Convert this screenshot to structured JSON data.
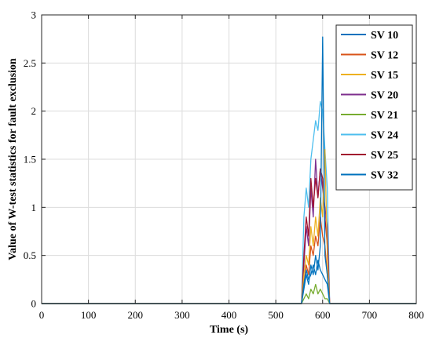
{
  "chart_data": {
    "type": "line",
    "xlabel": "Time (s)",
    "ylabel": "Value of W-test statistics for fault exclusion",
    "xlim": [
      0,
      800
    ],
    "ylim": [
      0,
      3
    ],
    "xticks": [
      "0",
      "100",
      "200",
      "300",
      "400",
      "500",
      "600",
      "700",
      "800"
    ],
    "yticks": [
      "0",
      "0.5",
      "1",
      "1.5",
      "2",
      "2.5",
      "3"
    ],
    "grid": true,
    "legend_position": "top-right",
    "series": [
      {
        "name": "SV 10",
        "color": "#0072BD",
        "x": [
          0,
          555,
          560,
          565,
          570,
          575,
          580,
          585,
          590,
          595,
          600,
          605,
          610,
          615,
          620,
          720,
          800
        ],
        "y": [
          0,
          0,
          0.15,
          0.3,
          0.2,
          0.4,
          0.3,
          0.5,
          0.35,
          0.6,
          2.77,
          0.5,
          0.3,
          0,
          0,
          0,
          0
        ]
      },
      {
        "name": "SV 12",
        "color": "#D95319",
        "x": [
          0,
          555,
          560,
          565,
          570,
          575,
          580,
          585,
          590,
          595,
          600,
          605,
          610,
          615,
          620,
          800
        ],
        "y": [
          0,
          0,
          0.2,
          0.4,
          0.3,
          0.6,
          0.5,
          0.7,
          0.6,
          0.9,
          0.7,
          0.6,
          0.3,
          0,
          0,
          0
        ]
      },
      {
        "name": "SV 15",
        "color": "#EDB120",
        "x": [
          0,
          555,
          560,
          565,
          570,
          575,
          580,
          585,
          590,
          595,
          600,
          605,
          610,
          615,
          620,
          800
        ],
        "y": [
          0,
          0,
          0.3,
          0.5,
          0.4,
          0.8,
          0.6,
          0.9,
          0.7,
          1.1,
          0.9,
          1.6,
          0.5,
          0,
          0,
          0
        ]
      },
      {
        "name": "SV 20",
        "color": "#7E2F8E",
        "x": [
          0,
          555,
          560,
          565,
          570,
          575,
          580,
          585,
          590,
          595,
          600,
          605,
          610,
          615,
          620,
          800
        ],
        "y": [
          0,
          0,
          0.4,
          0.8,
          0.6,
          1.2,
          0.9,
          1.5,
          1.1,
          1.4,
          1.2,
          1.0,
          0.8,
          0,
          0,
          0
        ]
      },
      {
        "name": "SV 21",
        "color": "#77AC30",
        "x": [
          0,
          555,
          560,
          565,
          570,
          575,
          580,
          585,
          590,
          595,
          600,
          605,
          610,
          615,
          620,
          800
        ],
        "y": [
          0,
          0,
          0.05,
          0.1,
          0.05,
          0.15,
          0.1,
          0.2,
          0.1,
          0.15,
          0.1,
          0.05,
          0.05,
          0,
          0,
          0
        ]
      },
      {
        "name": "SV 24",
        "color": "#4DBEEE",
        "x": [
          0,
          555,
          560,
          565,
          570,
          575,
          580,
          585,
          590,
          595,
          600,
          605,
          610,
          615,
          620,
          800
        ],
        "y": [
          0,
          0,
          0.9,
          1.2,
          1.0,
          1.5,
          1.7,
          1.9,
          1.8,
          2.1,
          2.0,
          1.6,
          1.2,
          0,
          0,
          0
        ]
      },
      {
        "name": "SV 25",
        "color": "#A2142F",
        "x": [
          0,
          555,
          560,
          565,
          570,
          575,
          580,
          585,
          590,
          595,
          600,
          605,
          610,
          615,
          620,
          800
        ],
        "y": [
          0,
          0,
          0.5,
          0.9,
          0.7,
          1.3,
          1.0,
          1.3,
          1.1,
          1.4,
          1.3,
          0.9,
          0.6,
          0,
          0,
          0
        ]
      },
      {
        "name": "SV 32",
        "color": "#0072BD",
        "x": [
          0,
          555,
          560,
          565,
          570,
          575,
          580,
          585,
          590,
          595,
          600,
          605,
          610,
          615,
          620,
          800
        ],
        "y": [
          0,
          0,
          0.2,
          0.35,
          0.25,
          0.3,
          0.4,
          0.3,
          0.45,
          0.35,
          0.3,
          0.25,
          0.2,
          0,
          0,
          0
        ]
      }
    ]
  }
}
